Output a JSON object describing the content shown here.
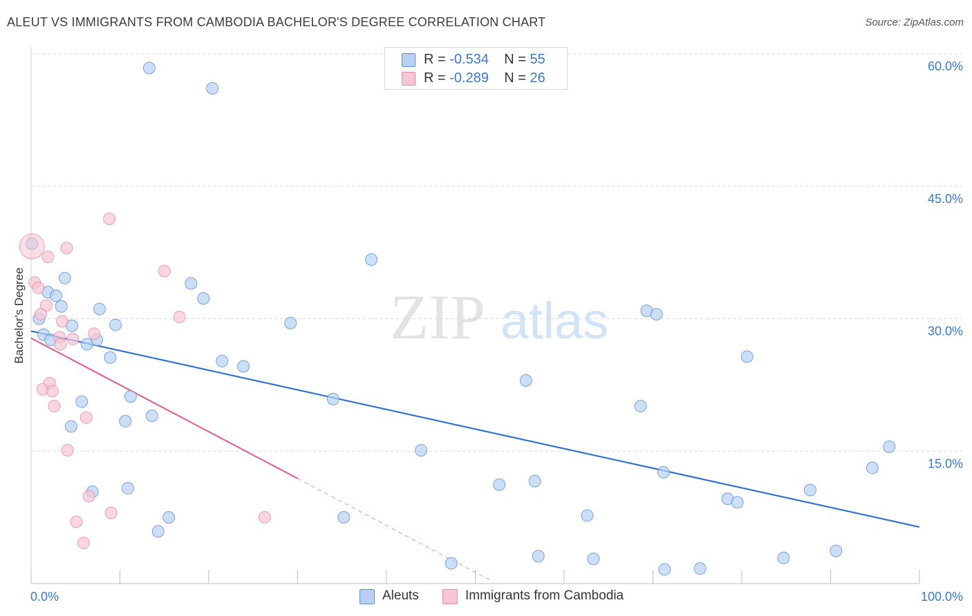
{
  "title": "ALEUT VS IMMIGRANTS FROM CAMBODIA BACHELOR'S DEGREE CORRELATION CHART",
  "source": "Source: ZipAtlas.com",
  "watermark": {
    "zip": "ZIP",
    "atlas": "atlas"
  },
  "legend": {
    "rows": [
      {
        "r_label": "R = ",
        "r_value": "-0.534",
        "n_label": "N = ",
        "n_value": "55"
      },
      {
        "r_label": "R = ",
        "r_value": "-0.289",
        "n_label": "N = ",
        "n_value": "26"
      }
    ]
  },
  "colors": {
    "blue_fill": "#b8d1f3",
    "blue_stroke": "#5b8fd6",
    "blue_line": "#2f72d0",
    "pink_fill": "#f7c5d3",
    "pink_stroke": "#e68aa6",
    "pink_line": "#e0668f",
    "axis_label": "#3a78d4",
    "grid": "#d9d9d9"
  },
  "chart_data": {
    "type": "scatter",
    "title": "ALEUT VS IMMIGRANTS FROM CAMBODIA BACHELOR'S DEGREE CORRELATION CHART",
    "xlabel": "",
    "ylabel": "Bachelor's Degree",
    "xlim": [
      0,
      100
    ],
    "ylim": [
      0,
      60
    ],
    "x_tick_labels": [
      "0.0%",
      "100.0%"
    ],
    "y_ticks": [
      15,
      30,
      45,
      60
    ],
    "y_tick_labels": [
      "15.0%",
      "30.0%",
      "45.0%",
      "60.0%"
    ],
    "legend_position": "top-center",
    "series": [
      {
        "name": "Aleuts",
        "color": "#5b8fd6",
        "r": -0.534,
        "n": 55,
        "trend": {
          "x": [
            0,
            100
          ],
          "y": [
            28.6,
            6.4
          ],
          "style": "solid"
        },
        "points": [
          [
            13.3,
            58.4
          ],
          [
            20.4,
            56.1
          ],
          [
            0.1,
            38.5
          ],
          [
            38.3,
            36.7
          ],
          [
            3.8,
            34.6
          ],
          [
            18.0,
            34.0
          ],
          [
            1.9,
            33.0
          ],
          [
            2.8,
            32.6
          ],
          [
            19.4,
            32.3
          ],
          [
            3.4,
            31.4
          ],
          [
            7.7,
            31.1
          ],
          [
            0.9,
            30.0
          ],
          [
            29.2,
            29.5
          ],
          [
            69.3,
            30.9
          ],
          [
            70.4,
            30.5
          ],
          [
            4.6,
            29.2
          ],
          [
            9.5,
            29.3
          ],
          [
            1.4,
            28.2
          ],
          [
            2.2,
            27.6
          ],
          [
            7.4,
            27.6
          ],
          [
            6.3,
            27.1
          ],
          [
            8.9,
            25.6
          ],
          [
            21.5,
            25.2
          ],
          [
            23.9,
            24.6
          ],
          [
            80.6,
            25.7
          ],
          [
            55.7,
            23.0
          ],
          [
            5.7,
            20.6
          ],
          [
            11.2,
            21.2
          ],
          [
            34.0,
            20.9
          ],
          [
            68.6,
            20.1
          ],
          [
            10.6,
            18.4
          ],
          [
            13.6,
            19.0
          ],
          [
            4.5,
            17.8
          ],
          [
            43.9,
            15.1
          ],
          [
            96.6,
            15.5
          ],
          [
            71.2,
            12.6
          ],
          [
            94.7,
            13.1
          ],
          [
            56.7,
            11.6
          ],
          [
            52.7,
            11.2
          ],
          [
            10.9,
            10.8
          ],
          [
            6.9,
            10.4
          ],
          [
            87.7,
            10.6
          ],
          [
            78.4,
            9.6
          ],
          [
            79.5,
            9.2
          ],
          [
            15.5,
            7.5
          ],
          [
            35.2,
            7.5
          ],
          [
            62.6,
            7.7
          ],
          [
            14.3,
            5.9
          ],
          [
            90.6,
            3.7
          ],
          [
            57.1,
            3.1
          ],
          [
            63.3,
            2.8
          ],
          [
            84.7,
            2.9
          ],
          [
            47.3,
            2.3
          ],
          [
            71.3,
            1.6
          ],
          [
            75.3,
            1.7
          ]
        ]
      },
      {
        "name": "Immigrants from Cambodia",
        "color": "#e68aa6",
        "r": -0.289,
        "n": 26,
        "trend": {
          "x": [
            0,
            30
          ],
          "y": [
            27.8,
            11.9
          ],
          "style": "solid",
          "extension": {
            "x": [
              30,
              52
            ],
            "y": [
              11.9,
              0.2
            ],
            "style": "dashed"
          }
        },
        "points": [
          [
            0.1,
            38.2
          ],
          [
            8.8,
            41.3
          ],
          [
            4.0,
            38.0
          ],
          [
            1.9,
            37.0
          ],
          [
            15.0,
            35.4
          ],
          [
            0.4,
            34.1
          ],
          [
            0.8,
            33.5
          ],
          [
            1.7,
            31.5
          ],
          [
            1.1,
            30.5
          ],
          [
            3.5,
            29.7
          ],
          [
            16.7,
            30.2
          ],
          [
            7.1,
            28.3
          ],
          [
            3.2,
            27.9
          ],
          [
            4.7,
            27.7
          ],
          [
            3.3,
            27.1
          ],
          [
            2.1,
            22.7
          ],
          [
            1.3,
            22.0
          ],
          [
            2.4,
            21.8
          ],
          [
            2.6,
            20.1
          ],
          [
            6.2,
            18.8
          ],
          [
            4.1,
            15.1
          ],
          [
            6.5,
            9.9
          ],
          [
            9.0,
            8.0
          ],
          [
            26.3,
            7.5
          ],
          [
            5.1,
            7.0
          ],
          [
            5.9,
            4.6
          ]
        ]
      }
    ]
  }
}
